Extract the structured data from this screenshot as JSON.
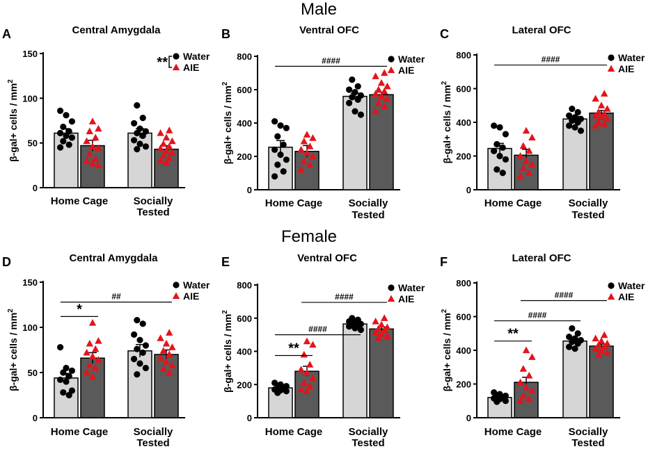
{
  "sections": {
    "male": "Male",
    "female": "Female"
  },
  "legend": {
    "water": "Water",
    "aie": "AIE"
  },
  "axis_unit": "mm",
  "axis_unit_exp": "2",
  "axis_prefix": "β-gal+ cells / ",
  "categories": [
    "Home Cage",
    "Socially",
    "Tested"
  ],
  "colors": {
    "water": "#d6d6d6",
    "aie": "#5a5a5a",
    "dot": "#000000",
    "triangle": "#e3141b"
  },
  "chart_data": [
    {
      "letter": "A",
      "type": "bar",
      "title": "Central Amygdala",
      "section": "Male",
      "ylim": [
        0,
        150
      ],
      "yticks": [
        0,
        50,
        100,
        150
      ],
      "categories": [
        "Home Cage",
        "Socially Tested"
      ],
      "series": [
        {
          "name": "Water",
          "values": [
            61,
            61
          ],
          "sem": [
            5,
            5
          ],
          "points": [
            [
              86,
              81,
              74,
              68,
              63,
              61,
              58,
              56,
              52,
              48,
              45
            ],
            [
              92,
              78,
              72,
              66,
              63,
              61,
              58,
              53,
              49,
              46,
              43
            ]
          ]
        },
        {
          "name": "AIE",
          "values": [
            47,
            43
          ],
          "sem": [
            6,
            4
          ],
          "points": [
            [
              74,
              66,
              63,
              56,
              52,
              46,
              44,
              38,
              32,
              30,
              27,
              25
            ],
            [
              64,
              61,
              56,
              52,
              49,
              46,
              44,
              41,
              39,
              36,
              33,
              30,
              28
            ]
          ]
        }
      ],
      "annotations": [
        {
          "label": "**",
          "type": "legend-bracket"
        }
      ]
    },
    {
      "letter": "B",
      "type": "bar",
      "title": "Ventral OFC",
      "section": "Male",
      "ylim": [
        0,
        800
      ],
      "yticks": [
        0,
        200,
        400,
        600,
        800
      ],
      "categories": [
        "Home Cage",
        "Socially Tested"
      ],
      "series": [
        {
          "name": "Water",
          "values": [
            255,
            560
          ],
          "sem": [
            40,
            18
          ],
          "points": [
            [
              410,
              385,
              370,
              320,
              270,
              240,
              210,
              180,
              150,
              110,
              80
            ],
            [
              660,
              620,
              600,
              585,
              565,
              555,
              540,
              520,
              470,
              450
            ]
          ]
        },
        {
          "name": "AIE",
          "values": [
            230,
            570
          ],
          "sem": [
            35,
            15
          ],
          "points": [
            [
              330,
              310,
              290,
              260,
              240,
              220,
              200,
              170,
              150,
              120
            ],
            [
              700,
              680,
              640,
              620,
              600,
              590,
              575,
              560,
              545,
              520,
              500,
              470
            ]
          ]
        }
      ],
      "annotations": [
        {
          "label": "####",
          "from": 0,
          "to": 1,
          "y": 740
        }
      ]
    },
    {
      "letter": "C",
      "type": "bar",
      "title": "Lateral OFC",
      "section": "Male",
      "ylim": [
        0,
        800
      ],
      "yticks": [
        0,
        200,
        400,
        600,
        800
      ],
      "categories": [
        "Home Cage",
        "Socially Tested"
      ],
      "series": [
        {
          "name": "Water",
          "values": [
            245,
            420
          ],
          "sem": [
            30,
            15
          ],
          "points": [
            [
              380,
              370,
              330,
              270,
              250,
              230,
              200,
              180,
              120,
              100
            ],
            [
              480,
              460,
              440,
              430,
              420,
              410,
              400,
              380,
              370,
              350
            ]
          ]
        },
        {
          "name": "AIE",
          "values": [
            205,
            455
          ],
          "sem": [
            35,
            15
          ],
          "points": [
            [
              350,
              310,
              260,
              230,
              200,
              170,
              150,
              130,
              100,
              80
            ],
            [
              570,
              540,
              500,
              480,
              460,
              450,
              440,
              430,
              420,
              400,
              390,
              380
            ]
          ]
        }
      ],
      "annotations": [
        {
          "label": "####",
          "from": 0,
          "to": 1,
          "y": 740
        }
      ]
    },
    {
      "letter": "D",
      "type": "bar",
      "title": "Central Amygdala",
      "section": "Female",
      "ylim": [
        0,
        150
      ],
      "yticks": [
        0,
        50,
        100,
        150
      ],
      "categories": [
        "Home Cage",
        "Socially Tested"
      ],
      "series": [
        {
          "name": "Water",
          "values": [
            44,
            74
          ],
          "sem": [
            5,
            7
          ],
          "points": [
            [
              78,
              55,
              52,
              50,
              46,
              42,
              40,
              30,
              28,
              25
            ],
            [
              108,
              104,
              92,
              86,
              80,
              76,
              72,
              65,
              60,
              55,
              48
            ]
          ]
        },
        {
          "name": "AIE",
          "values": [
            66,
            70
          ],
          "sem": [
            6,
            5
          ],
          "points": [
            [
              105,
              85,
              82,
              76,
              72,
              68,
              64,
              58,
              55,
              50,
              45
            ],
            [
              94,
              88,
              82,
              78,
              74,
              70,
              66,
              62,
              58,
              54,
              50
            ]
          ]
        }
      ],
      "annotations": [
        {
          "label": "*",
          "from": 0,
          "to": 1,
          "group": 0,
          "y": 112
        },
        {
          "label": "##",
          "from": 0,
          "to": 1,
          "y": 128
        }
      ]
    },
    {
      "letter": "E",
      "type": "bar",
      "title": "Ventral OFC",
      "section": "Female",
      "ylim": [
        0,
        800
      ],
      "yticks": [
        0,
        200,
        400,
        600,
        800
      ],
      "categories": [
        "Home Cage",
        "Socially Tested"
      ],
      "series": [
        {
          "name": "Water",
          "values": [
            180,
            565
          ],
          "sem": [
            10,
            10
          ],
          "points": [
            [
              210,
              200,
              190,
              180,
              175,
              170,
              165,
              160,
              150
            ],
            [
              600,
              590,
              580,
              570,
              565,
              560,
              555,
              550,
              540,
              530
            ]
          ]
        },
        {
          "name": "AIE",
          "values": [
            280,
            535
          ],
          "sem": [
            30,
            12
          ],
          "points": [
            [
              460,
              440,
              380,
              320,
              290,
              270,
              240,
              210,
              190,
              170,
              160
            ],
            [
              600,
              580,
              560,
              545,
              535,
              525,
              515,
              505,
              490,
              480
            ]
          ]
        }
      ],
      "annotations": [
        {
          "label": "**",
          "from": 0,
          "to": 1,
          "group": 0,
          "y": 375
        },
        {
          "label": "####",
          "from": 0,
          "to": 0,
          "cross": true,
          "y": 500
        },
        {
          "label": "####",
          "from": 1,
          "to": 1,
          "cross": true,
          "y": 695
        }
      ]
    },
    {
      "letter": "F",
      "type": "bar",
      "title": "Lateral OFC",
      "section": "Female",
      "ylim": [
        0,
        800
      ],
      "yticks": [
        0,
        200,
        400,
        600,
        800
      ],
      "categories": [
        "Home Cage",
        "Socially Tested"
      ],
      "series": [
        {
          "name": "Water",
          "values": [
            120,
            455
          ],
          "sem": [
            8,
            12
          ],
          "points": [
            [
              150,
              140,
              130,
              125,
              120,
              115,
              110,
              100,
              95
            ],
            [
              530,
              500,
              480,
              470,
              460,
              450,
              440,
              420,
              410
            ]
          ]
        },
        {
          "name": "AIE",
          "values": [
            210,
            425
          ],
          "sem": [
            30,
            12
          ],
          "points": [
            [
              400,
              360,
              290,
              250,
              210,
              180,
              160,
              130,
              110,
              100
            ],
            [
              490,
              470,
              455,
              440,
              430,
              420,
              410,
              400,
              385,
              375
            ]
          ]
        }
      ],
      "annotations": [
        {
          "label": "**",
          "from": 0,
          "to": 1,
          "group": 0,
          "y": 455
        },
        {
          "label": "####",
          "from": 0,
          "to": 0,
          "cross": true,
          "y": 575
        },
        {
          "label": "####",
          "from": 1,
          "to": 1,
          "cross": true,
          "y": 695
        }
      ]
    }
  ]
}
